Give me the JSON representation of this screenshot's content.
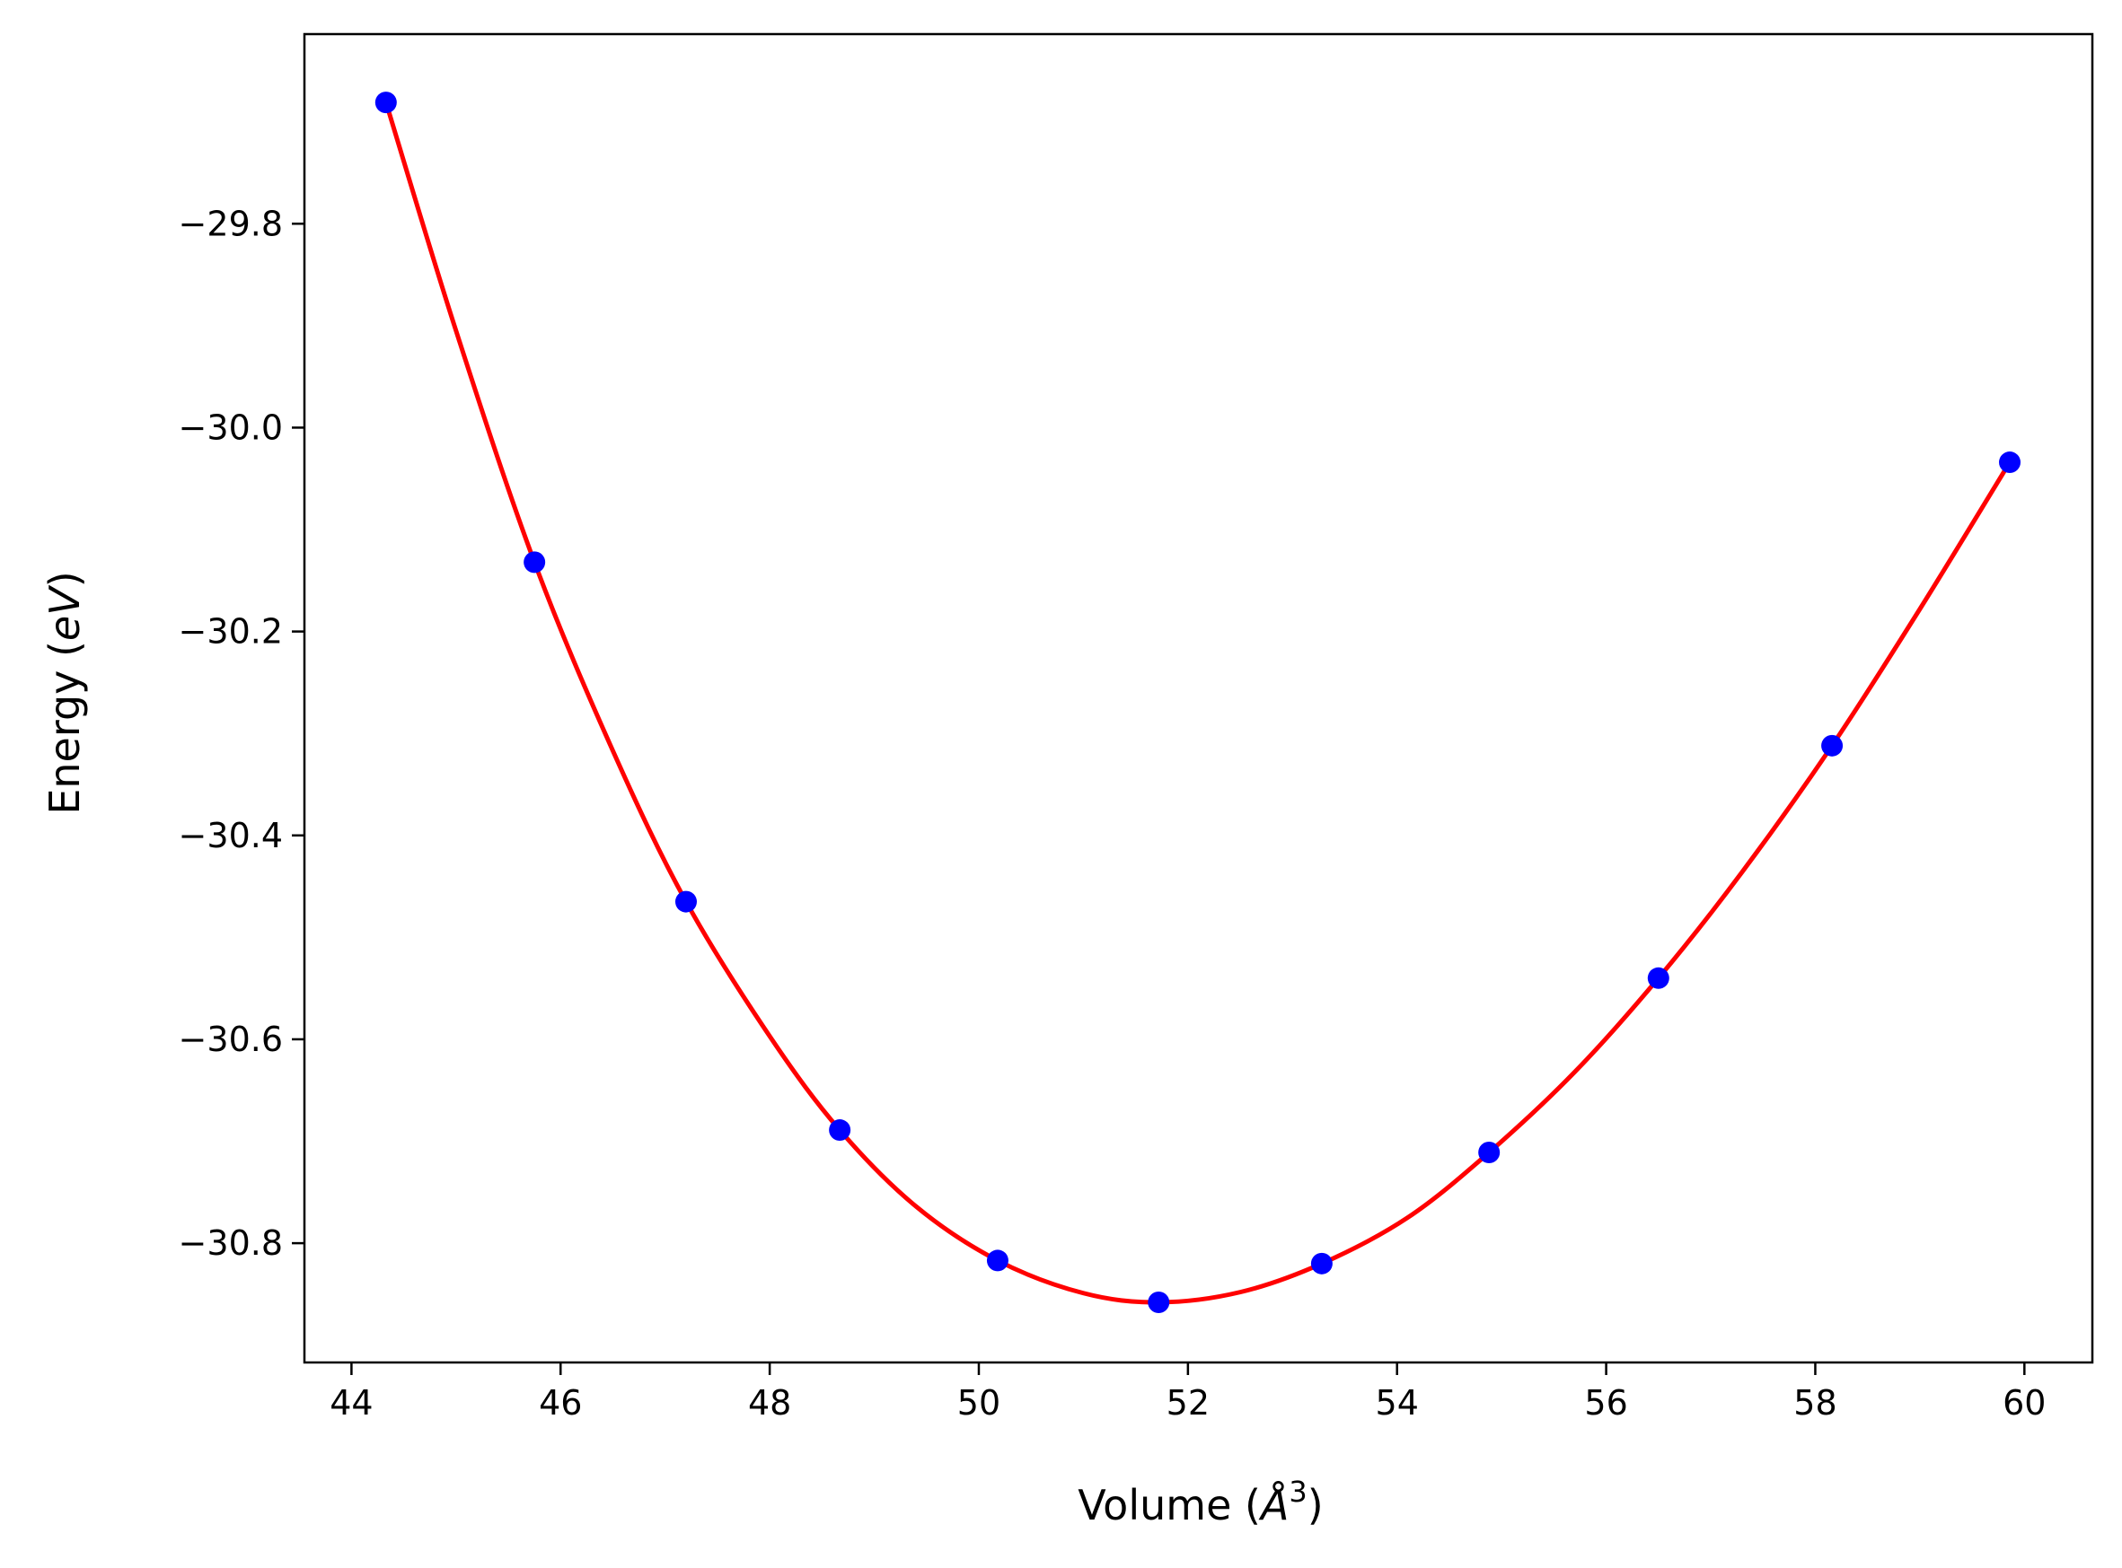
{
  "chart_data": {
    "type": "line",
    "title": "",
    "xlabel": {
      "prefix": "Volume (",
      "unit": "Å",
      "exponent": "3",
      "suffix": ")"
    },
    "ylabel": {
      "prefix": "Energy (",
      "unit": "eV",
      "suffix": ")"
    },
    "xlim": [
      43.55,
      60.65
    ],
    "ylim": [
      -30.917,
      -29.614
    ],
    "xticks": [
      44,
      46,
      48,
      50,
      52,
      54,
      56,
      58,
      60
    ],
    "xtick_labels": [
      "44",
      "46",
      "48",
      "50",
      "52",
      "54",
      "56",
      "58",
      "60"
    ],
    "yticks": [
      -29.8,
      -30.0,
      -30.2,
      -30.4,
      -30.6,
      -30.8
    ],
    "ytick_labels": [
      "−29.8",
      "−30.0",
      "−30.2",
      "−30.4",
      "−30.6",
      "−30.8"
    ],
    "grid": false,
    "legend": "none",
    "series": [
      {
        "style": "markers",
        "color": "#0000ff",
        "x": [
          44.33,
          45.75,
          47.2,
          48.67,
          50.18,
          51.72,
          53.28,
          54.88,
          56.5,
          58.16,
          59.86
        ],
        "y": [
          -29.681,
          -30.132,
          -30.465,
          -30.689,
          -30.817,
          -30.858,
          -30.82,
          -30.711,
          -30.54,
          -30.312,
          -30.034
        ]
      },
      {
        "style": "line",
        "color": "#ff0000",
        "x": [
          44.33,
          45.0,
          45.75,
          46.5,
          47.2,
          48.0,
          48.67,
          49.4,
          50.18,
          51.0,
          51.72,
          52.5,
          53.28,
          54.1,
          54.88,
          55.7,
          56.5,
          57.3,
          58.16,
          59.0,
          59.86
        ],
        "y": [
          -29.681,
          -29.905,
          -30.132,
          -30.317,
          -30.465,
          -30.597,
          -30.689,
          -30.764,
          -30.817,
          -30.849,
          -30.858,
          -30.848,
          -30.82,
          -30.775,
          -30.711,
          -30.632,
          -30.54,
          -30.436,
          -30.312,
          -30.178,
          -30.034
        ]
      }
    ]
  }
}
